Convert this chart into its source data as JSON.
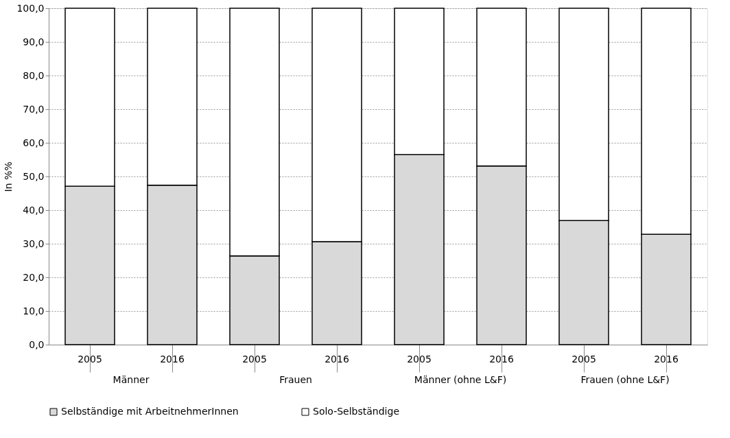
{
  "chart_data": {
    "type": "bar",
    "stacked": true,
    "ylabel": "In %%",
    "categories": [
      "2005",
      "2016",
      "2005",
      "2016",
      "2005",
      "2016",
      "2005",
      "2016"
    ],
    "series": [
      {
        "name": "Selbständige mit ArbeitnehmerInnen",
        "color": "#d9d9d9",
        "values": [
          47.1,
          47.4,
          26.4,
          30.6,
          56.5,
          53.1,
          36.9,
          32.8
        ]
      },
      {
        "name": "Solo-Selbständige",
        "color": "#ffffff",
        "values": [
          52.9,
          52.6,
          73.6,
          69.4,
          43.5,
          46.9,
          63.1,
          67.2
        ]
      }
    ],
    "annotations": [
      "Männer",
      "Frauen",
      "Männer (ohne L&F)",
      "Frauen (ohne L&F)"
    ],
    "ylim": [
      0,
      100
    ],
    "yticks": [
      {
        "value": 0,
        "label": "0,0"
      },
      {
        "value": 10,
        "label": "10,0"
      },
      {
        "value": 20,
        "label": "20,0"
      },
      {
        "value": 30,
        "label": "30,0"
      },
      {
        "value": 40,
        "label": "40,0"
      },
      {
        "value": 50,
        "label": "50,0"
      },
      {
        "value": 60,
        "label": "60,0"
      },
      {
        "value": 70,
        "label": "70,0"
      },
      {
        "value": 80,
        "label": "80,0"
      },
      {
        "value": 90,
        "label": "90,0"
      },
      {
        "value": 100,
        "label": "100,0"
      }
    ],
    "grid": "y",
    "legend": "bottom"
  }
}
